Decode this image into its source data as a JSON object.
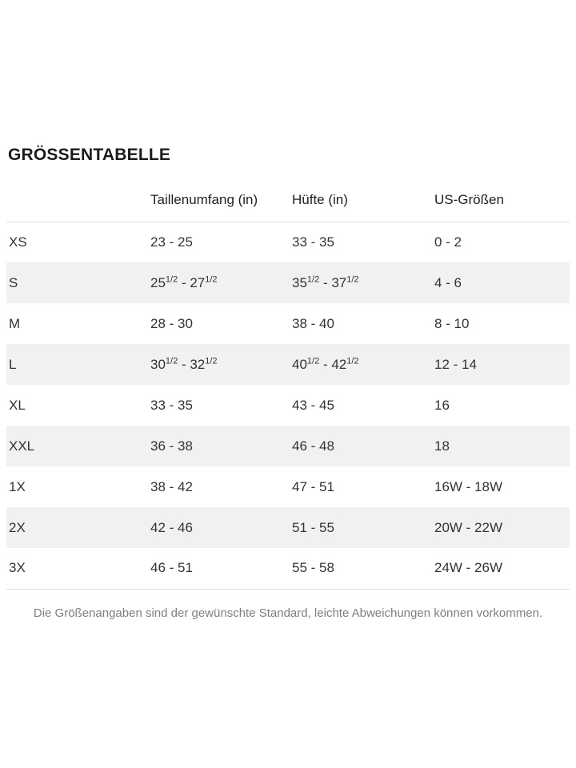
{
  "page": {
    "title": "GRÖSSENTABELLE",
    "footnote": "Die Größenangaben sind der gewünschte Standard, leichte Abweichungen können vorkommen."
  },
  "table": {
    "columns": {
      "size": "",
      "waist": "Taillenumfang (in)",
      "hip": "Hüfte (in)",
      "us": "US-Größen"
    },
    "rows": [
      {
        "size": "XS",
        "waist": "23 - 25",
        "hip": "33 - 35",
        "us": "0 - 2"
      },
      {
        "size": "S",
        "waist": "25{1/2} - 27{1/2}",
        "hip": "35{1/2} - 37{1/2}",
        "us": "4 - 6"
      },
      {
        "size": "M",
        "waist": "28 - 30",
        "hip": "38 - 40",
        "us": "8 - 10"
      },
      {
        "size": "L",
        "waist": "30{1/2} - 32{1/2}",
        "hip": "40{1/2} - 42{1/2}",
        "us": "12 - 14"
      },
      {
        "size": "XL",
        "waist": "33 - 35",
        "hip": "43 - 45",
        "us": "16"
      },
      {
        "size": "XXL",
        "waist": "36 - 38",
        "hip": "46 - 48",
        "us": "18"
      },
      {
        "size": "1X",
        "waist": "38 - 42",
        "hip": "47 - 51",
        "us": "16W - 18W"
      },
      {
        "size": "2X",
        "waist": "42 - 46",
        "hip": "51 - 55",
        "us": "20W - 22W"
      },
      {
        "size": "3X",
        "waist": "46 - 51",
        "hip": "55 - 58",
        "us": "24W - 26W"
      }
    ],
    "superscript_note": "{1/2} markers render as superscript fractions"
  },
  "colors": {
    "stripe_bg": "#f1f1f0",
    "divider": "#dddddd",
    "text": "#333333",
    "heading_text": "#1b1b1b",
    "muted_text": "#7f7f7f"
  }
}
